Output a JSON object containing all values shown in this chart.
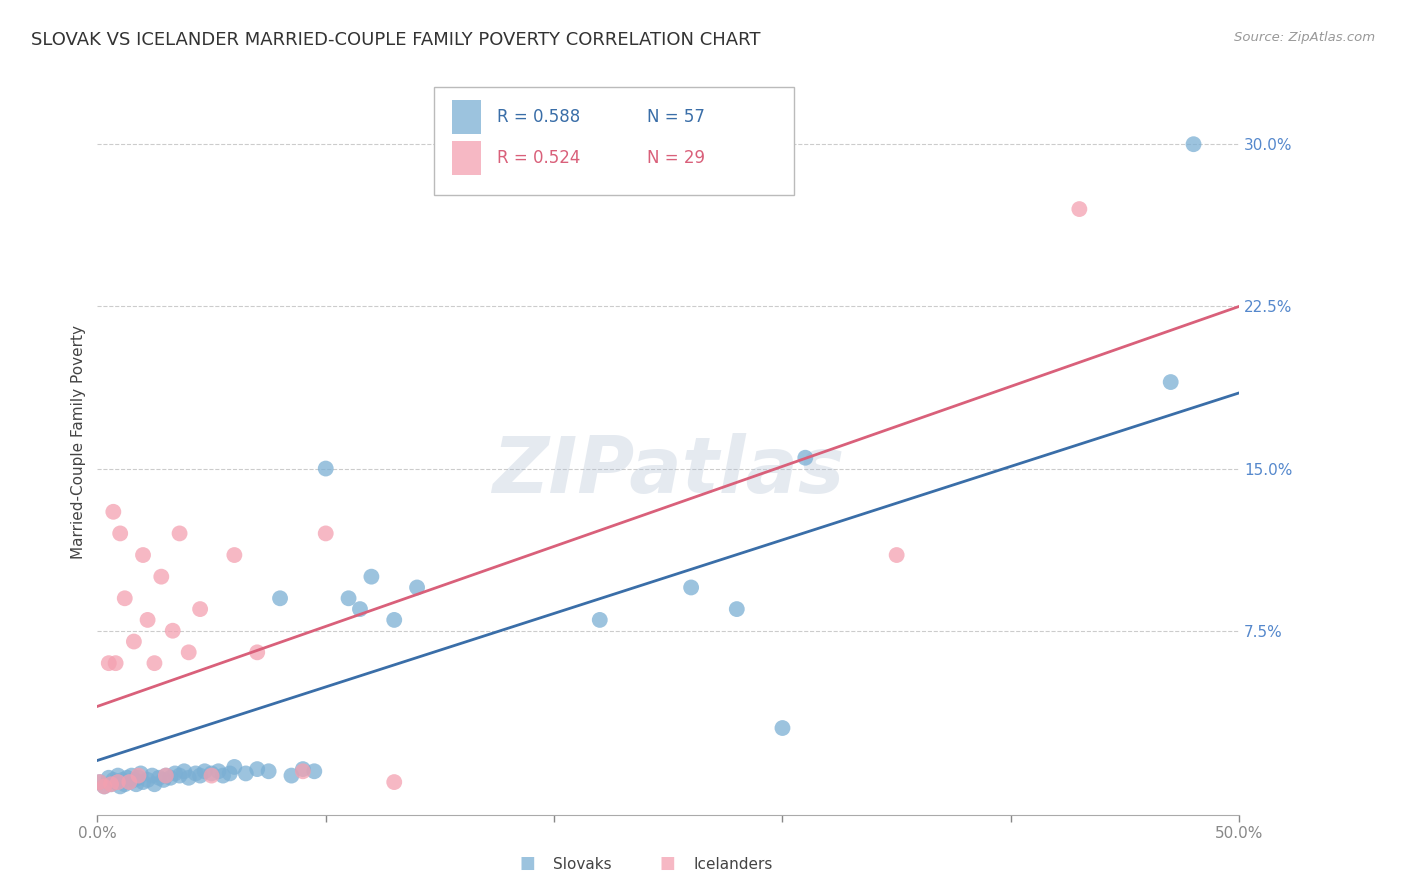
{
  "title": "SLOVAK VS ICELANDER MARRIED-COUPLE FAMILY POVERTY CORRELATION CHART",
  "source": "Source: ZipAtlas.com",
  "ylabel": "Married-Couple Family Poverty",
  "xlim": [
    0,
    0.5
  ],
  "ylim": [
    -0.01,
    0.335
  ],
  "yticks": [
    0.075,
    0.15,
    0.225,
    0.3
  ],
  "ytick_labels": [
    "7.5%",
    "15.0%",
    "22.5%",
    "30.0%"
  ],
  "xtick_labels": [
    "0.0%",
    "",
    "",
    "",
    "",
    "50.0%"
  ],
  "blue_color": "#7BAFD4",
  "pink_color": "#F4A0B0",
  "blue_line_color": "#3A6EA8",
  "pink_line_color": "#D9607A",
  "blue_r": 0.588,
  "pink_r": 0.524,
  "blue_n": 57,
  "pink_n": 29,
  "slovaks_label": "Slovaks",
  "icelanders_label": "Icelanders",
  "watermark": "ZIPatlas",
  "title_fontsize": 13,
  "axis_label_fontsize": 11,
  "tick_fontsize": 11,
  "watermark_fontsize": 56,
  "grid_color": "#CCCCCC",
  "tick_color": "#5588CC",
  "background_color": "#FFFFFF",
  "blue_x": [
    0.001,
    0.003,
    0.005,
    0.006,
    0.007,
    0.008,
    0.009,
    0.01,
    0.011,
    0.012,
    0.013,
    0.014,
    0.015,
    0.016,
    0.017,
    0.018,
    0.019,
    0.02,
    0.022,
    0.024,
    0.025,
    0.027,
    0.029,
    0.03,
    0.032,
    0.034,
    0.036,
    0.038,
    0.04,
    0.043,
    0.045,
    0.047,
    0.05,
    0.053,
    0.055,
    0.058,
    0.06,
    0.065,
    0.07,
    0.075,
    0.08,
    0.085,
    0.09,
    0.095,
    0.1,
    0.11,
    0.115,
    0.12,
    0.13,
    0.14,
    0.22,
    0.26,
    0.28,
    0.3,
    0.31,
    0.47,
    0.48
  ],
  "blue_y": [
    0.005,
    0.003,
    0.007,
    0.004,
    0.006,
    0.005,
    0.008,
    0.003,
    0.006,
    0.004,
    0.007,
    0.005,
    0.008,
    0.006,
    0.004,
    0.007,
    0.009,
    0.005,
    0.006,
    0.008,
    0.004,
    0.007,
    0.006,
    0.008,
    0.007,
    0.009,
    0.008,
    0.01,
    0.007,
    0.009,
    0.008,
    0.01,
    0.009,
    0.01,
    0.008,
    0.009,
    0.012,
    0.009,
    0.011,
    0.01,
    0.09,
    0.008,
    0.011,
    0.01,
    0.15,
    0.09,
    0.085,
    0.1,
    0.08,
    0.095,
    0.08,
    0.095,
    0.085,
    0.03,
    0.155,
    0.19,
    0.3
  ],
  "pink_x": [
    0.001,
    0.003,
    0.005,
    0.006,
    0.007,
    0.008,
    0.009,
    0.01,
    0.012,
    0.014,
    0.016,
    0.018,
    0.02,
    0.022,
    0.025,
    0.028,
    0.03,
    0.033,
    0.036,
    0.04,
    0.045,
    0.05,
    0.06,
    0.07,
    0.09,
    0.1,
    0.13,
    0.35,
    0.43
  ],
  "pink_y": [
    0.005,
    0.003,
    0.06,
    0.004,
    0.13,
    0.06,
    0.005,
    0.12,
    0.09,
    0.005,
    0.07,
    0.008,
    0.11,
    0.08,
    0.06,
    0.1,
    0.008,
    0.075,
    0.12,
    0.065,
    0.085,
    0.008,
    0.11,
    0.065,
    0.01,
    0.12,
    0.005,
    0.11,
    0.27
  ],
  "blue_line_x": [
    0.0,
    0.5
  ],
  "blue_line_y": [
    0.015,
    0.185
  ],
  "pink_line_x": [
    0.0,
    0.5
  ],
  "pink_line_y": [
    0.04,
    0.225
  ]
}
